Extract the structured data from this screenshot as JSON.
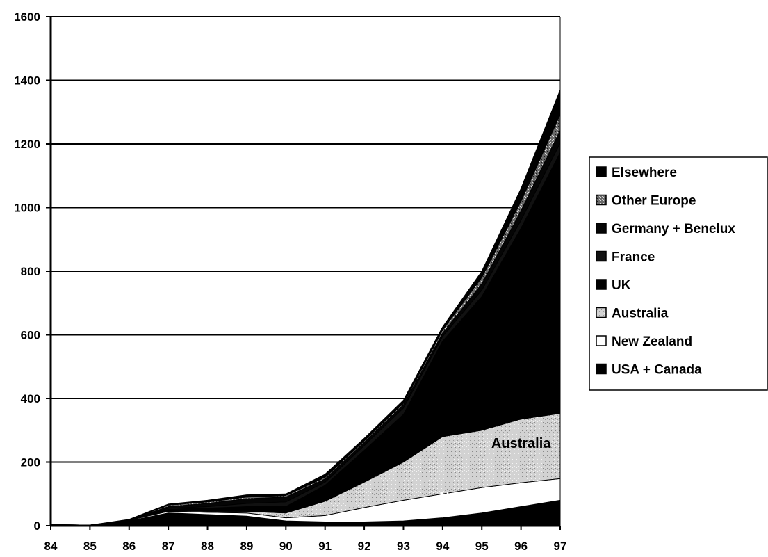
{
  "chart_data": {
    "type": "area",
    "stacked": true,
    "title": "",
    "xlabel": "",
    "ylabel": "",
    "x": [
      "84",
      "85",
      "86",
      "87",
      "88",
      "89",
      "90",
      "91",
      "92",
      "93",
      "94",
      "95",
      "96",
      "97"
    ],
    "y_ticks": [
      "0",
      "200",
      "400",
      "600",
      "800",
      "1000",
      "1200",
      "1400",
      "1600"
    ],
    "ylim": [
      0,
      1600
    ],
    "grid": "horizontal",
    "legend_position": "right",
    "series": [
      {
        "name": "USA + Canada",
        "color": "#000000",
        "pattern": "solid",
        "values": [
          3,
          2,
          15,
          40,
          35,
          30,
          15,
          12,
          12,
          15,
          25,
          40,
          60,
          80
        ]
      },
      {
        "name": "New Zealand",
        "color": "#ffffff",
        "pattern": "white",
        "values": [
          0,
          0,
          2,
          5,
          7,
          10,
          10,
          20,
          45,
          65,
          75,
          80,
          75,
          68
        ]
      },
      {
        "name": "Australia",
        "color": "#c8c8c8",
        "pattern": "speckle",
        "values": [
          0,
          0,
          0,
          2,
          3,
          5,
          15,
          45,
          80,
          120,
          180,
          180,
          200,
          205
        ]
      },
      {
        "name": "UK",
        "color": "#000000",
        "pattern": "solid",
        "values": [
          0,
          0,
          0,
          5,
          10,
          15,
          20,
          50,
          100,
          150,
          300,
          420,
          600,
          820
        ]
      },
      {
        "name": "France",
        "color": "#111111",
        "pattern": "solid",
        "values": [
          0,
          0,
          0,
          3,
          5,
          10,
          15,
          10,
          15,
          20,
          15,
          20,
          25,
          30
        ]
      },
      {
        "name": "Germany + Benelux",
        "color": "#050505",
        "pattern": "solid",
        "values": [
          0,
          0,
          0,
          5,
          10,
          15,
          15,
          10,
          10,
          10,
          10,
          20,
          30,
          40
        ]
      },
      {
        "name": "Other Europe",
        "color": "#7a7a7a",
        "pattern": "speckle",
        "values": [
          0,
          0,
          0,
          5,
          5,
          5,
          5,
          5,
          5,
          5,
          10,
          20,
          30,
          50
        ]
      },
      {
        "name": "Elsewhere",
        "color": "#000000",
        "pattern": "solid",
        "values": [
          0,
          0,
          3,
          3,
          5,
          7,
          5,
          10,
          8,
          10,
          10,
          20,
          40,
          77
        ]
      }
    ],
    "annotations": [
      {
        "text": "Australia",
        "x": "96",
        "y": 245,
        "color": "#000000"
      },
      {
        "text": "New Zealand",
        "x": "95",
        "y": 75,
        "color": "#ffffff"
      }
    ],
    "legend_entries": [
      "Elsewhere",
      "Other Europe",
      "Germany + Benelux",
      "France",
      "UK",
      "Australia",
      "New Zealand",
      "USA + Canada"
    ]
  }
}
